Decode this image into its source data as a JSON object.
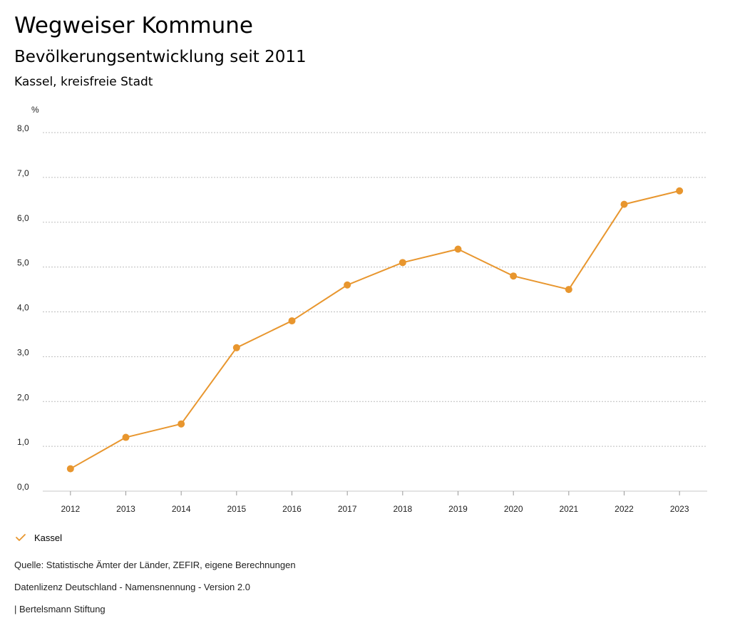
{
  "header": {
    "title": "Wegweiser Kommune",
    "subtitle": "Bevölkerungsentwicklung seit 2011",
    "region": "Kassel, kreisfreie Stadt"
  },
  "chart_data": {
    "type": "line",
    "unit_label": "%",
    "x": [
      "2012",
      "2013",
      "2014",
      "2015",
      "2016",
      "2017",
      "2018",
      "2019",
      "2020",
      "2021",
      "2022",
      "2023"
    ],
    "series": [
      {
        "name": "Kassel",
        "color": "#E8962E",
        "values": [
          0.5,
          1.2,
          1.5,
          3.2,
          3.8,
          4.6,
          5.1,
          5.4,
          4.8,
          4.5,
          6.4,
          6.7
        ]
      }
    ],
    "ylim": [
      0,
      8
    ],
    "yticks": [
      "0,0",
      "1,0",
      "2,0",
      "3,0",
      "4,0",
      "5,0",
      "6,0",
      "7,0",
      "8,0"
    ],
    "grid": true,
    "legend_position": "bottom-left"
  },
  "footer": {
    "source": "Quelle: Statistische Ämter der Länder, ZEFIR, eigene Berechnungen",
    "license": "Datenlizenz Deutschland - Namensnennung - Version 2.0",
    "credit": "| Bertelsmann Stiftung"
  }
}
